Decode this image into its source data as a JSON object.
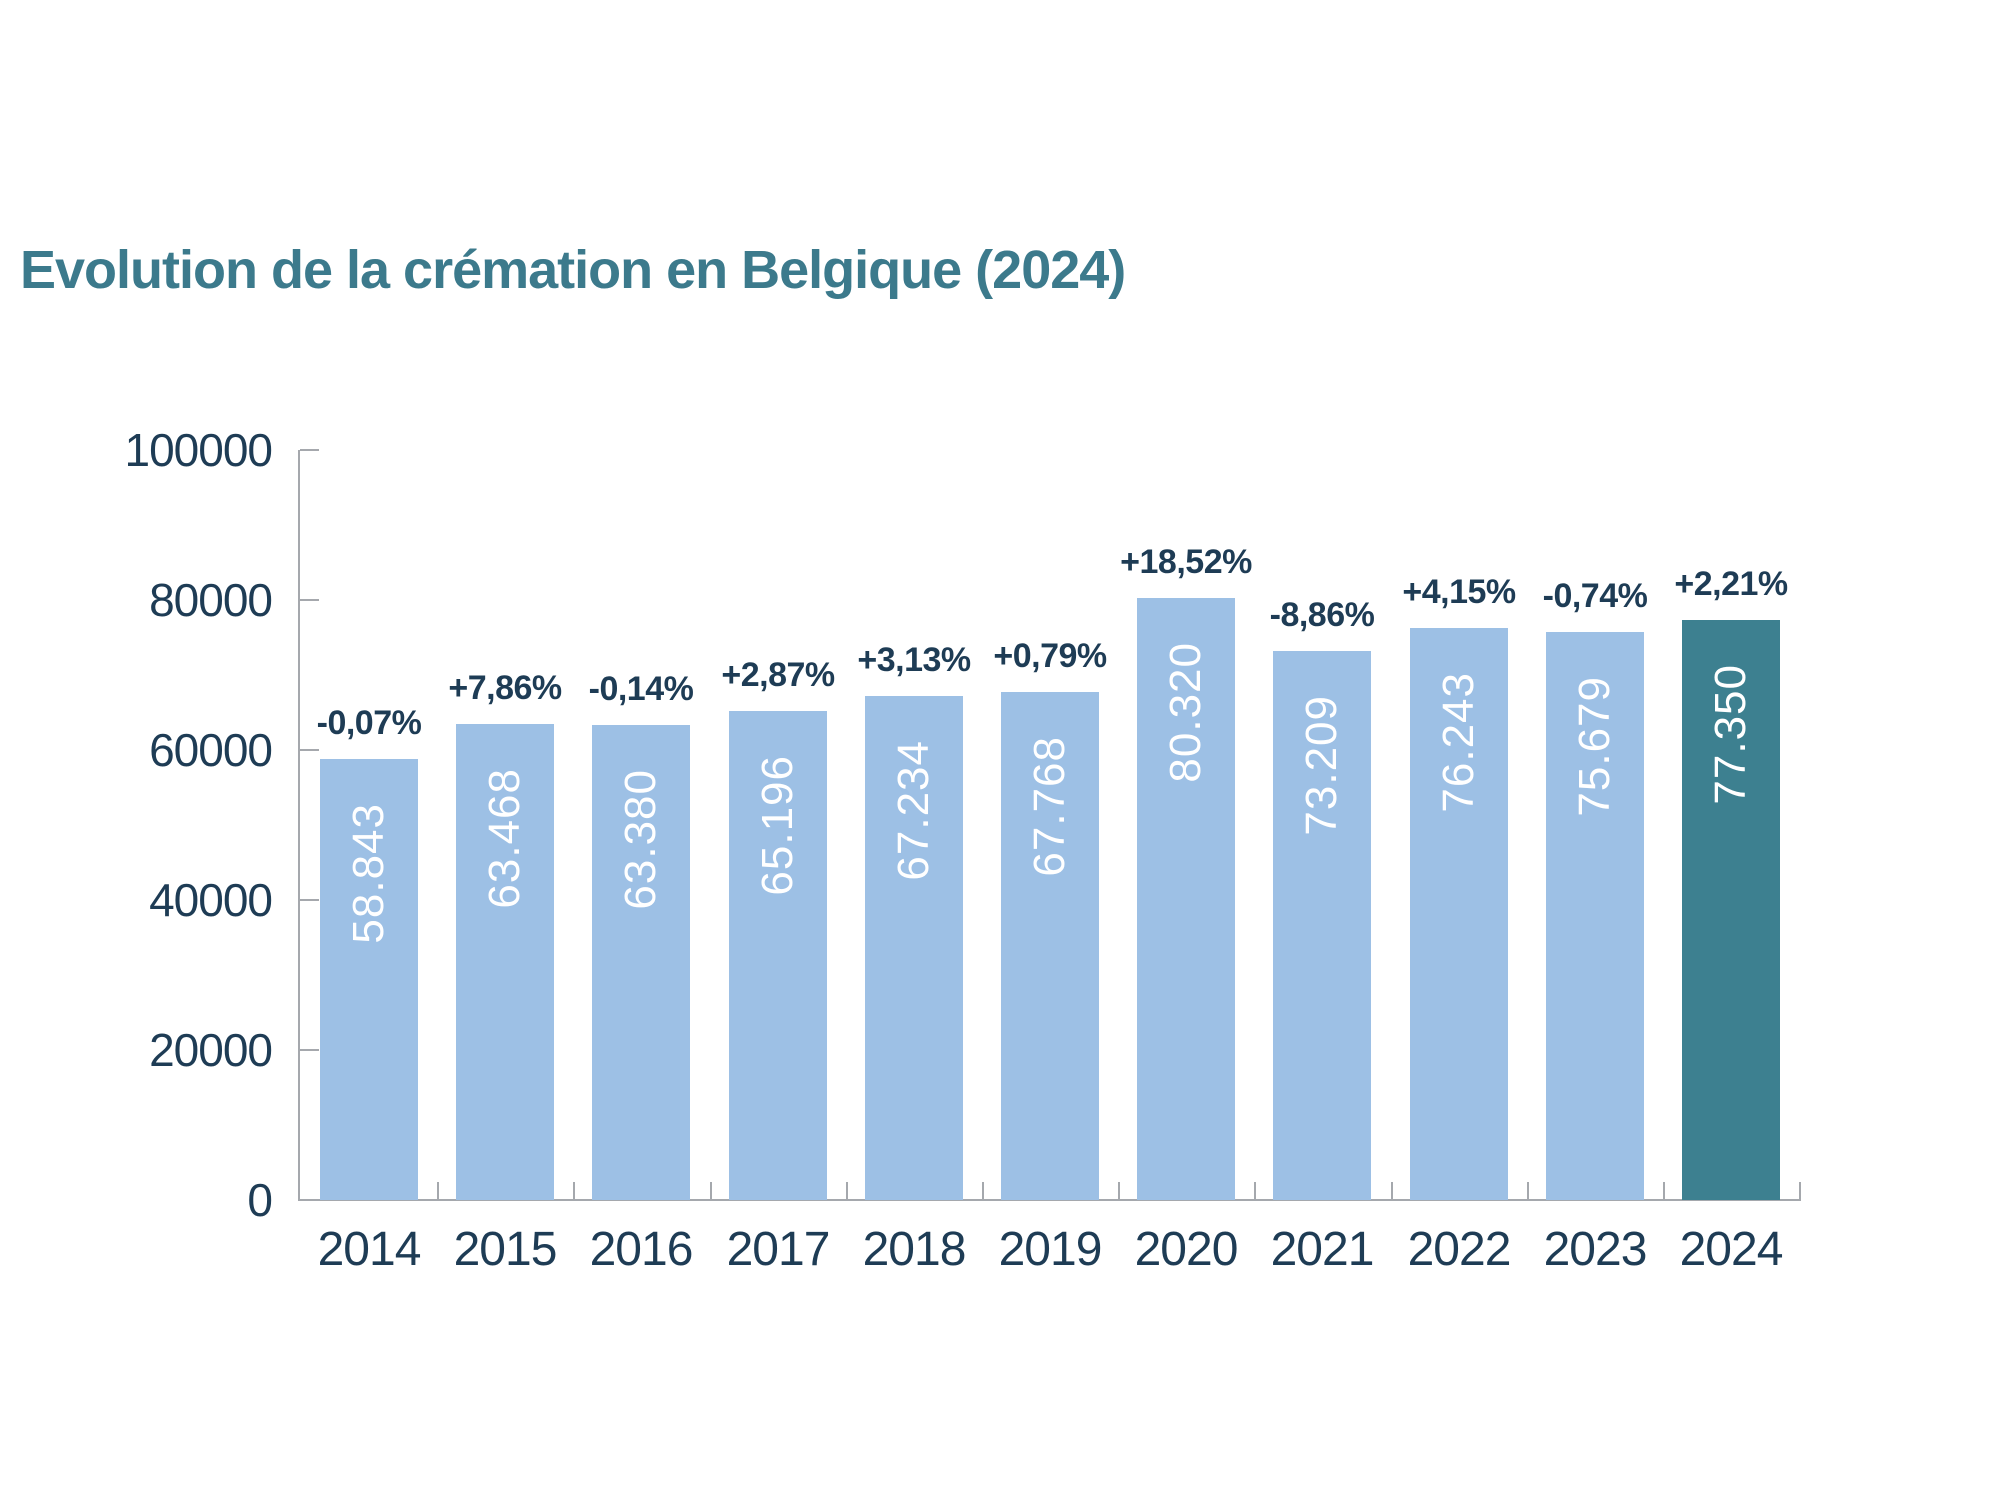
{
  "title": "Evolution de la crémation en Belgique (2024)",
  "colors": {
    "title_text": "#3C7A8C",
    "bar_fill": "#9DC0E5",
    "bar_highlight_fill": "#3D8090",
    "label_text": "#1E3C55",
    "bar_value_text": "#FFFFFF",
    "axis": "#A5A8AD"
  },
  "chart_data": {
    "type": "bar",
    "title": "Evolution de la crémation en Belgique (2024)",
    "categories": [
      "2014",
      "2015",
      "2016",
      "2017",
      "2018",
      "2019",
      "2020",
      "2021",
      "2022",
      "2023",
      "2024"
    ],
    "values": [
      58843,
      63468,
      63380,
      65196,
      67234,
      67768,
      80320,
      73209,
      76243,
      75679,
      77350
    ],
    "value_labels": [
      "58.843",
      "63.468",
      "63.380",
      "65.196",
      "67.234",
      "67.768",
      "80.320",
      "73.209",
      "76.243",
      "75.679",
      "77.350"
    ],
    "pct_change_labels": [
      "-0,07%",
      "+7,86%",
      "-0,14%",
      "+2,87%",
      "+3,13%",
      "+0,79%",
      "+18,52%",
      "-8,86%",
      "+4,15%",
      "-0,74%",
      "+2,21%"
    ],
    "highlight_index": 10,
    "xlabel": "",
    "ylabel": "",
    "ylim": [
      0,
      100000
    ],
    "yticks": [
      0,
      20000,
      40000,
      60000,
      80000,
      100000
    ],
    "ytick_labels": [
      "0",
      "20000",
      "40000",
      "60000",
      "80000",
      "100000"
    ],
    "grid": false,
    "legend_position": "none",
    "value_label_orientation": "vertical-bottom-to-top",
    "pct_label_position": "above-bar"
  }
}
